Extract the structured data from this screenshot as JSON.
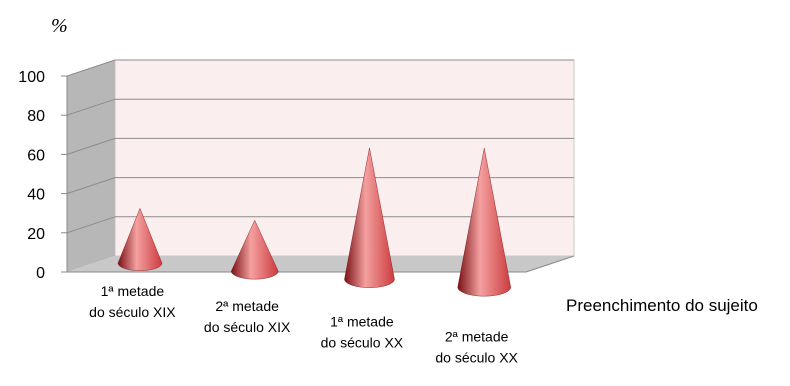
{
  "chart_data": {
    "type": "bar",
    "style": "3d-cone",
    "categories": [
      [
        "1ª metade",
        "do século XIX"
      ],
      [
        "2ª metade",
        "do século XIX"
      ],
      [
        "1ª metade",
        "do século XX"
      ],
      [
        "2ª metade",
        "do século XX"
      ]
    ],
    "values": [
      28,
      26,
      67,
      71
    ],
    "title": "",
    "xlabel": "Preenchimento do sujeito",
    "ylabel": "%",
    "ylim": [
      0,
      100
    ],
    "yticks": [
      "0",
      "20",
      "40",
      "60",
      "80",
      "100"
    ],
    "grid": true,
    "legend": "none",
    "colors": {
      "cone": "#cc3b3e",
      "cone_light": "#f4a0a0",
      "cone_dark": "#7a1014",
      "back_wall": "#fbeeef",
      "side_wall": "#b7b7b7",
      "floor": "#c8c8c8",
      "grid": "#8c8c8c"
    }
  }
}
